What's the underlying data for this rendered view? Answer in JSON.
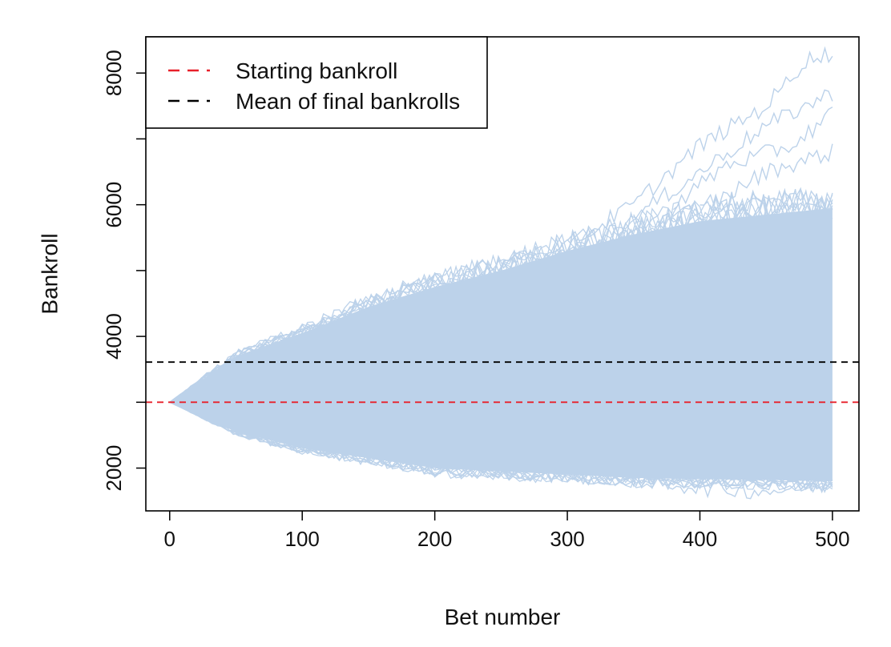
{
  "chart_data": {
    "type": "line",
    "title": "",
    "xlabel": "Bet number",
    "ylabel": "Bankroll",
    "xlim": [
      -18,
      520
    ],
    "ylim": [
      1350,
      8550
    ],
    "x_ticks": [
      0,
      100,
      200,
      300,
      400,
      500
    ],
    "x_tick_labels": [
      "0",
      "100",
      "200",
      "300",
      "400",
      "500"
    ],
    "y_ticks": [
      2000,
      4000,
      6000,
      8000
    ],
    "y_tick_labels": [
      "2000",
      "4000",
      "6000",
      "8000"
    ],
    "grid": false,
    "legend_position": "top-left",
    "simulation_band": {
      "color": "#bcd2ea",
      "x_range": [
        0,
        500
      ],
      "start_value": 3000,
      "upper_envelope": [
        [
          0,
          3000
        ],
        [
          50,
          3700
        ],
        [
          100,
          4050
        ],
        [
          150,
          4450
        ],
        [
          200,
          4750
        ],
        [
          250,
          5000
        ],
        [
          300,
          5300
        ],
        [
          350,
          5550
        ],
        [
          400,
          5750
        ],
        [
          450,
          5850
        ],
        [
          500,
          5950
        ]
      ],
      "lower_envelope": [
        [
          0,
          3000
        ],
        [
          50,
          2550
        ],
        [
          100,
          2300
        ],
        [
          150,
          2150
        ],
        [
          200,
          2000
        ],
        [
          250,
          1950
        ],
        [
          300,
          1900
        ],
        [
          350,
          1850
        ],
        [
          400,
          1830
        ],
        [
          450,
          1820
        ],
        [
          500,
          1800
        ]
      ],
      "outlier_paths": [
        {
          "points": [
            [
              300,
              5400
            ],
            [
              350,
              6000
            ],
            [
              400,
              6900
            ],
            [
              450,
              7500
            ],
            [
              480,
              8200
            ],
            [
              500,
              8300
            ]
          ]
        },
        {
          "points": [
            [
              350,
              5800
            ],
            [
              400,
              6500
            ],
            [
              450,
              7200
            ],
            [
              500,
              7700
            ]
          ]
        },
        {
          "points": [
            [
              380,
              6000
            ],
            [
              420,
              6600
            ],
            [
              470,
              6900
            ],
            [
              500,
              7400
            ]
          ]
        },
        {
          "points": [
            [
              400,
              5900
            ],
            [
              450,
              6500
            ],
            [
              500,
              6800
            ]
          ]
        },
        {
          "points": [
            [
              300,
              2000
            ],
            [
              350,
              1850
            ],
            [
              400,
              1700
            ],
            [
              450,
              1650
            ],
            [
              500,
              1750
            ]
          ]
        }
      ]
    },
    "reference_lines": [
      {
        "name": "Starting bankroll",
        "y": 3000,
        "color": "#e8202a",
        "dash": "dashed"
      },
      {
        "name": "Mean of final bankrolls",
        "y": 3610,
        "color": "#000000",
        "dash": "dashed"
      }
    ],
    "legend": {
      "entries": [
        {
          "label": "Starting bankroll",
          "color": "#e8202a"
        },
        {
          "label": "Mean of final bankrolls",
          "color": "#000000"
        }
      ]
    }
  }
}
